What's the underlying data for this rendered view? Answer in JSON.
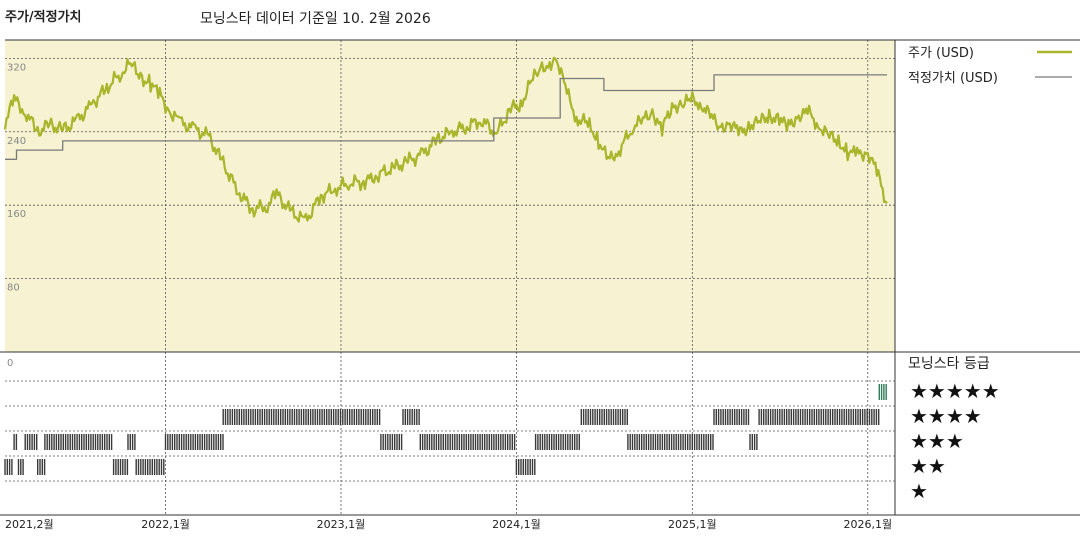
{
  "header": {
    "title": "주가/적정가치",
    "subtitle": "모닝스타 데이터 기준일 10. 2월 2026"
  },
  "colors": {
    "panel_bg": "#f6f2d2",
    "price_line": "#a9b52b",
    "fair_value_line": "#7a7a7a",
    "rating_bar": "#3a3a3a",
    "rating_recent": "#2e7d5b",
    "grid": "#555555"
  },
  "chart_data": [
    {
      "type": "line",
      "y_ticks": [
        "320",
        "240",
        "160",
        "80",
        "0"
      ],
      "ylim": [
        0,
        340
      ],
      "xlim": [
        "2021-02-01",
        "2026-02-10"
      ],
      "x_ticks": [
        {
          "date": "2021-02-01",
          "label": "2021,2월"
        },
        {
          "date": "2022-01-01",
          "label": "2022,1월"
        },
        {
          "date": "2023-01-01",
          "label": "2023,1월"
        },
        {
          "date": "2024-01-01",
          "label": "2024,1월"
        },
        {
          "date": "2025-01-01",
          "label": "2025,1월"
        },
        {
          "date": "2026-01-01",
          "label": "2026,1월"
        }
      ],
      "grid": "dashed",
      "legend_position": "right",
      "series": [
        {
          "name": "주가 (USD)",
          "key": "price",
          "points": [
            [
              "2021-02-01",
              250
            ],
            [
              "2021-02-20",
              275
            ],
            [
              "2021-03-15",
              262
            ],
            [
              "2021-04-10",
              240
            ],
            [
              "2021-05-05",
              248
            ],
            [
              "2021-06-01",
              242
            ],
            [
              "2021-07-01",
              252
            ],
            [
              "2021-08-01",
              270
            ],
            [
              "2021-09-01",
              288
            ],
            [
              "2021-10-01",
              305
            ],
            [
              "2021-10-20",
              314
            ],
            [
              "2021-11-10",
              300
            ],
            [
              "2021-12-01",
              292
            ],
            [
              "2021-12-20",
              280
            ],
            [
              "2022-01-10",
              262
            ],
            [
              "2022-02-01",
              250
            ],
            [
              "2022-03-01",
              243
            ],
            [
              "2022-04-01",
              235
            ],
            [
              "2022-05-01",
              205
            ],
            [
              "2022-06-01",
              175
            ],
            [
              "2022-07-01",
              155
            ],
            [
              "2022-08-01",
              160
            ],
            [
              "2022-08-20",
              172
            ],
            [
              "2022-09-20",
              152
            ],
            [
              "2022-10-20",
              143
            ],
            [
              "2022-11-20",
              170
            ],
            [
              "2022-12-20",
              178
            ],
            [
              "2023-01-20",
              185
            ],
            [
              "2023-02-20",
              185
            ],
            [
              "2023-03-20",
              194
            ],
            [
              "2023-04-20",
              200
            ],
            [
              "2023-05-20",
              208
            ],
            [
              "2023-06-20",
              215
            ],
            [
              "2023-07-20",
              232
            ],
            [
              "2023-08-20",
              240
            ],
            [
              "2023-09-20",
              246
            ],
            [
              "2023-10-20",
              253
            ],
            [
              "2023-11-20",
              238
            ],
            [
              "2023-12-20",
              265
            ],
            [
              "2024-01-10",
              270
            ],
            [
              "2024-02-01",
              295
            ],
            [
              "2024-02-20",
              308
            ],
            [
              "2024-03-10",
              315
            ],
            [
              "2024-03-25",
              320
            ],
            [
              "2024-04-15",
              282
            ],
            [
              "2024-05-05",
              255
            ],
            [
              "2024-06-01",
              248
            ],
            [
              "2024-06-20",
              230
            ],
            [
              "2024-07-10",
              208
            ],
            [
              "2024-08-01",
              220
            ],
            [
              "2024-09-01",
              246
            ],
            [
              "2024-09-20",
              252
            ],
            [
              "2024-10-10",
              262
            ],
            [
              "2024-10-30",
              243
            ],
            [
              "2024-11-20",
              268
            ],
            [
              "2024-12-10",
              270
            ],
            [
              "2025-01-01",
              275
            ],
            [
              "2025-01-20",
              270
            ],
            [
              "2025-02-10",
              255
            ],
            [
              "2025-03-01",
              245
            ],
            [
              "2025-03-20",
              250
            ],
            [
              "2025-04-10",
              238
            ],
            [
              "2025-05-01",
              248
            ],
            [
              "2025-05-20",
              250
            ],
            [
              "2025-06-10",
              258
            ],
            [
              "2025-07-01",
              252
            ],
            [
              "2025-07-20",
              246
            ],
            [
              "2025-08-10",
              258
            ],
            [
              "2025-09-01",
              260
            ],
            [
              "2025-09-20",
              248
            ],
            [
              "2025-10-10",
              236
            ],
            [
              "2025-11-01",
              230
            ],
            [
              "2025-11-20",
              218
            ],
            [
              "2025-12-10",
              215
            ],
            [
              "2026-01-01",
              218
            ],
            [
              "2026-01-20",
              196
            ],
            [
              "2026-02-10",
              162
            ]
          ]
        },
        {
          "name": "적정가치 (USD)",
          "key": "fair_value",
          "points": [
            [
              "2021-02-01",
              210
            ],
            [
              "2021-02-25",
              210
            ],
            [
              "2021-02-25",
              220
            ],
            [
              "2021-06-01",
              220
            ],
            [
              "2021-06-01",
              230
            ],
            [
              "2023-11-15",
              230
            ],
            [
              "2023-11-15",
              255
            ],
            [
              "2024-04-01",
              255
            ],
            [
              "2024-04-01",
              298
            ],
            [
              "2024-07-01",
              298
            ],
            [
              "2024-07-01",
              285
            ],
            [
              "2025-02-15",
              285
            ],
            [
              "2025-02-15",
              302
            ],
            [
              "2026-02-10",
              302
            ]
          ]
        }
      ]
    },
    {
      "type": "rating_strip",
      "title": "모닝스타 등급",
      "star_labels": [
        "★★★★★",
        "★★★★",
        "★★★",
        "★★",
        "★"
      ],
      "periods": [
        {
          "stars": 2,
          "from": "2021-02-01",
          "to": "2021-02-20"
        },
        {
          "stars": 3,
          "from": "2021-02-20",
          "to": "2021-03-01"
        },
        {
          "stars": 2,
          "from": "2021-03-01",
          "to": "2021-03-15"
        },
        {
          "stars": 3,
          "from": "2021-03-15",
          "to": "2021-04-10"
        },
        {
          "stars": 2,
          "from": "2021-04-10",
          "to": "2021-04-25"
        },
        {
          "stars": 3,
          "from": "2021-04-25",
          "to": "2021-09-15"
        },
        {
          "stars": 2,
          "from": "2021-09-15",
          "to": "2021-10-15"
        },
        {
          "stars": 3,
          "from": "2021-10-15",
          "to": "2021-11-01"
        },
        {
          "stars": 2,
          "from": "2021-11-01",
          "to": "2022-01-01"
        },
        {
          "stars": 3,
          "from": "2022-01-01",
          "to": "2022-05-01"
        },
        {
          "stars": 4,
          "from": "2022-05-01",
          "to": "2023-03-25"
        },
        {
          "stars": 3,
          "from": "2023-03-25",
          "to": "2023-05-10"
        },
        {
          "stars": 4,
          "from": "2023-05-10",
          "to": "2023-06-15"
        },
        {
          "stars": 3,
          "from": "2023-06-15",
          "to": "2024-01-01"
        },
        {
          "stars": 2,
          "from": "2024-01-01",
          "to": "2024-02-10"
        },
        {
          "stars": 3,
          "from": "2024-02-10",
          "to": "2024-05-15"
        },
        {
          "stars": 4,
          "from": "2024-05-15",
          "to": "2024-08-20"
        },
        {
          "stars": 3,
          "from": "2024-08-20",
          "to": "2025-02-15"
        },
        {
          "stars": 4,
          "from": "2025-02-15",
          "to": "2025-05-01"
        },
        {
          "stars": 3,
          "from": "2025-05-01",
          "to": "2025-05-20"
        },
        {
          "stars": 4,
          "from": "2025-05-20",
          "to": "2026-01-25"
        },
        {
          "stars": 5,
          "from": "2026-01-25",
          "to": "2026-02-10"
        }
      ]
    }
  ]
}
